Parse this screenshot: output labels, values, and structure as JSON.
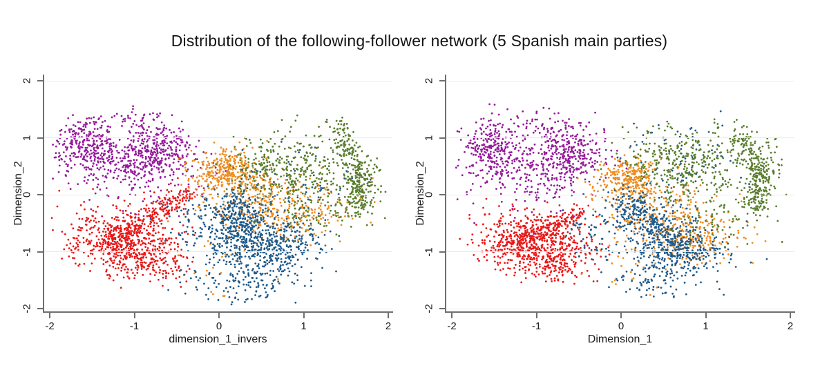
{
  "page": {
    "title": "Distribution of the following-follower network (5 Spanish main parties)"
  },
  "style": {
    "background": "#ffffff",
    "grid_color": "#e9eceb",
    "axis_color": "#6e6e6e",
    "tick_label_color": "#1a1a1a",
    "dot_radius": 1.4
  },
  "chart_data": [
    {
      "type": "scatter",
      "xlabel": "dimension_1_invers",
      "ylabel": "Dimension_2",
      "xlim": [
        -2,
        2
      ],
      "ylim": [
        -2,
        2
      ],
      "xticks": [
        -2,
        -1,
        0,
        1,
        2
      ],
      "yticks": [
        2,
        1,
        0,
        -1,
        -2
      ],
      "grid": "horizontal",
      "legend": "none",
      "series": [
        {
          "name": "party-purple",
          "color": "#951b9b",
          "clusters": [
            {
              "kind": "blob",
              "cx": -1.55,
              "cy": 0.9,
              "sx": 0.17,
              "sy": 0.22,
              "n": 240
            },
            {
              "kind": "blob",
              "cx": -0.72,
              "cy": 0.75,
              "sx": 0.2,
              "sy": 0.24,
              "n": 240
            },
            {
              "kind": "blob",
              "cx": -1.1,
              "cy": 0.55,
              "sx": 0.4,
              "sy": 0.33,
              "n": 330
            },
            {
              "kind": "blob",
              "cx": -0.95,
              "cy": 1.28,
              "sx": 0.24,
              "sy": 0.14,
              "n": 55
            }
          ]
        },
        {
          "name": "party-red",
          "color": "#ea1717",
          "clusters": [
            {
              "kind": "seg",
              "x1": -1.35,
              "y1": -0.9,
              "x2": -0.38,
              "y2": 0.05,
              "s": 0.1,
              "n": 280
            },
            {
              "kind": "blob",
              "cx": -0.95,
              "cy": -1.0,
              "sx": 0.3,
              "sy": 0.22,
              "n": 330
            },
            {
              "kind": "blob",
              "cx": -1.3,
              "cy": -0.72,
              "sx": 0.34,
              "sy": 0.28,
              "n": 230
            },
            {
              "kind": "blob",
              "cx": -0.85,
              "cy": -1.32,
              "sx": 0.24,
              "sy": 0.12,
              "n": 55
            }
          ]
        },
        {
          "name": "party-orange",
          "color": "#f08c1e",
          "clusters": [
            {
              "kind": "blob",
              "cx": 0.1,
              "cy": 0.42,
              "sx": 0.2,
              "sy": 0.2,
              "n": 320
            },
            {
              "kind": "blob",
              "cx": 0.55,
              "cy": -0.12,
              "sx": 0.38,
              "sy": 0.3,
              "n": 300
            },
            {
              "kind": "blob",
              "cx": 1.0,
              "cy": -0.35,
              "sx": 0.3,
              "sy": 0.24,
              "n": 110
            },
            {
              "kind": "blob",
              "cx": 0.0,
              "cy": -1.25,
              "sx": 0.3,
              "sy": 0.3,
              "n": 20
            }
          ]
        },
        {
          "name": "party-blue",
          "color": "#1f5a8a",
          "clusters": [
            {
              "kind": "blob",
              "cx": 0.2,
              "cy": -0.38,
              "sx": 0.16,
              "sy": 0.26,
              "n": 270
            },
            {
              "kind": "blob",
              "cx": 0.6,
              "cy": -0.92,
              "sx": 0.3,
              "sy": 0.25,
              "n": 400
            },
            {
              "kind": "blob",
              "cx": 0.35,
              "cy": -1.5,
              "sx": 0.3,
              "sy": 0.2,
              "n": 120
            },
            {
              "kind": "blob",
              "cx": 0.3,
              "cy": -0.7,
              "sx": 0.45,
              "sy": 0.38,
              "n": 170
            },
            {
              "kind": "blob",
              "cx": -0.25,
              "cy": -0.55,
              "sx": 0.17,
              "sy": 0.28,
              "n": 45
            },
            {
              "kind": "blob",
              "cx": 1.0,
              "cy": 0.2,
              "sx": 0.35,
              "sy": 0.3,
              "n": 50
            }
          ]
        },
        {
          "name": "party-green",
          "color": "#5a7d2e",
          "clusters": [
            {
              "kind": "seg",
              "x1": 1.62,
              "y1": -0.32,
              "x2": 1.66,
              "y2": 0.55,
              "s": 0.08,
              "n": 190
            },
            {
              "kind": "seg",
              "x1": 1.6,
              "y1": 0.55,
              "x2": 1.4,
              "y2": 1.22,
              "s": 0.09,
              "n": 115
            },
            {
              "kind": "blob",
              "cx": 0.9,
              "cy": 0.35,
              "sx": 0.33,
              "sy": 0.33,
              "n": 320
            },
            {
              "kind": "blob",
              "cx": 0.45,
              "cy": 0.5,
              "sx": 0.18,
              "sy": 0.2,
              "n": 65
            },
            {
              "kind": "blob",
              "cx": 1.2,
              "cy": -0.35,
              "sx": 0.25,
              "sy": 0.18,
              "n": 55
            },
            {
              "kind": "blob",
              "cx": 1.82,
              "cy": 0.1,
              "sx": 0.1,
              "sy": 0.35,
              "n": 40
            }
          ]
        }
      ]
    },
    {
      "type": "scatter",
      "xlabel": "Dimension_1",
      "ylabel": "Dimension_2",
      "xlim": [
        -2,
        2
      ],
      "ylim": [
        -2,
        2
      ],
      "xticks": [
        -2,
        -1,
        0,
        1,
        2
      ],
      "yticks": [
        2,
        1,
        0,
        -1,
        -2
      ],
      "grid": "horizontal",
      "legend": "none",
      "series": [
        {
          "name": "party-purple",
          "color": "#951b9b",
          "clusters": [
            {
              "kind": "blob",
              "cx": -1.55,
              "cy": 0.85,
              "sx": 0.15,
              "sy": 0.24,
              "n": 220
            },
            {
              "kind": "blob",
              "cx": -0.62,
              "cy": 0.78,
              "sx": 0.2,
              "sy": 0.22,
              "n": 230
            },
            {
              "kind": "blob",
              "cx": -1.02,
              "cy": 0.45,
              "sx": 0.38,
              "sy": 0.33,
              "n": 320
            },
            {
              "kind": "blob",
              "cx": -0.9,
              "cy": 1.25,
              "sx": 0.24,
              "sy": 0.14,
              "n": 55
            }
          ]
        },
        {
          "name": "party-red",
          "color": "#ea1717",
          "clusters": [
            {
              "kind": "seg",
              "x1": -1.45,
              "y1": -1.0,
              "x2": -0.45,
              "y2": -0.32,
              "s": 0.1,
              "n": 260
            },
            {
              "kind": "blob",
              "cx": -0.85,
              "cy": -1.0,
              "sx": 0.28,
              "sy": 0.22,
              "n": 320
            },
            {
              "kind": "blob",
              "cx": -1.2,
              "cy": -0.72,
              "sx": 0.33,
              "sy": 0.27,
              "n": 210
            },
            {
              "kind": "blob",
              "cx": -0.75,
              "cy": -1.3,
              "sx": 0.22,
              "sy": 0.12,
              "n": 50
            }
          ]
        },
        {
          "name": "party-orange",
          "color": "#f08c1e",
          "clusters": [
            {
              "kind": "blob",
              "cx": 0.1,
              "cy": 0.28,
              "sx": 0.2,
              "sy": 0.2,
              "n": 290
            },
            {
              "kind": "blob",
              "cx": 0.45,
              "cy": -0.38,
              "sx": 0.35,
              "sy": 0.34,
              "n": 270
            },
            {
              "kind": "blob",
              "cx": 0.92,
              "cy": -0.72,
              "sx": 0.28,
              "sy": 0.22,
              "n": 160
            },
            {
              "kind": "blob",
              "cx": 0.1,
              "cy": -1.35,
              "sx": 0.35,
              "sy": 0.28,
              "n": 25
            }
          ]
        },
        {
          "name": "party-blue",
          "color": "#1f5a8a",
          "clusters": [
            {
              "kind": "seg",
              "x1": 0.0,
              "y1": -0.08,
              "x2": 0.7,
              "y2": -1.0,
              "s": 0.16,
              "n": 320
            },
            {
              "kind": "blob",
              "cx": 0.75,
              "cy": -1.0,
              "sx": 0.28,
              "sy": 0.2,
              "n": 220
            },
            {
              "kind": "blob",
              "cx": 0.45,
              "cy": -1.5,
              "sx": 0.28,
              "sy": 0.2,
              "n": 90
            },
            {
              "kind": "blob",
              "cx": 0.3,
              "cy": -0.6,
              "sx": 0.4,
              "sy": 0.33,
              "n": 130
            },
            {
              "kind": "blob",
              "cx": -0.35,
              "cy": -0.65,
              "sx": 0.15,
              "sy": 0.25,
              "n": 35
            },
            {
              "kind": "blob",
              "cx": 0.8,
              "cy": 0.6,
              "sx": 0.4,
              "sy": 0.33,
              "n": 70
            }
          ]
        },
        {
          "name": "party-green",
          "color": "#5a7d2e",
          "clusters": [
            {
              "kind": "seg",
              "x1": 1.6,
              "y1": -0.28,
              "x2": 1.65,
              "y2": 0.5,
              "s": 0.08,
              "n": 180
            },
            {
              "kind": "seg",
              "x1": 1.58,
              "y1": 0.5,
              "x2": 1.42,
              "y2": 1.15,
              "s": 0.09,
              "n": 110
            },
            {
              "kind": "blob",
              "cx": 0.85,
              "cy": 0.45,
              "sx": 0.35,
              "sy": 0.35,
              "n": 320
            },
            {
              "kind": "blob",
              "cx": 0.5,
              "cy": 0.75,
              "sx": 0.2,
              "sy": 0.22,
              "n": 60
            },
            {
              "kind": "blob",
              "cx": 1.15,
              "cy": -0.45,
              "sx": 0.3,
              "sy": 0.18,
              "n": 55
            },
            {
              "kind": "blob",
              "cx": 1.82,
              "cy": 0.3,
              "sx": 0.1,
              "sy": 0.38,
              "n": 40
            }
          ]
        }
      ]
    }
  ]
}
